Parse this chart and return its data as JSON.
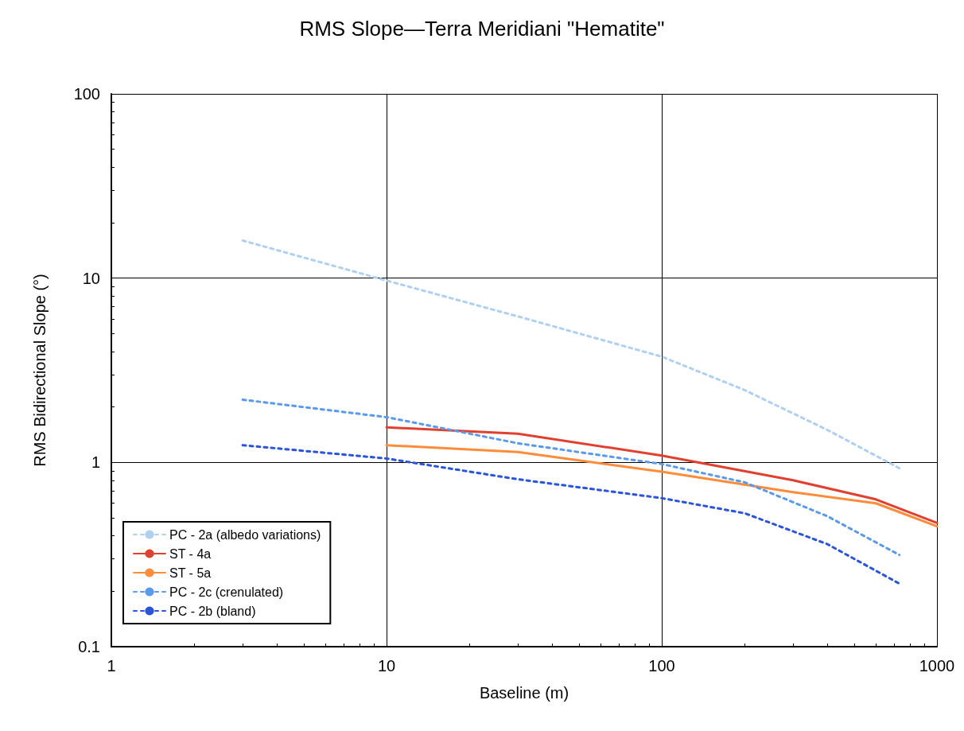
{
  "chart_data": {
    "type": "line",
    "title": "RMS Slope—Terra Meridiani \"Hematite\"",
    "xlabel": "Baseline (m)",
    "ylabel": "RMS Bidirectional Slope (°)",
    "log": "xy",
    "xlim": [
      1,
      1000
    ],
    "xticks": [
      1,
      10,
      100,
      1000
    ],
    "ylim": [
      0.1,
      100
    ],
    "yticks": [
      0.1,
      1,
      10,
      100
    ],
    "grid": true,
    "legend": "bottom left",
    "marker": "none",
    "series": [
      {
        "name": "PC - 2a (albedo variations)",
        "color": "#b0d0f0",
        "line_style": "dashed",
        "x": [
          3,
          10,
          30,
          100,
          200,
          400,
          730
        ],
        "values": [
          16,
          9.7,
          6.2,
          3.75,
          2.47,
          1.5,
          0.93
        ]
      },
      {
        "name": "ST - 4a",
        "color": "#e04030",
        "line_style": "solid",
        "x": [
          10,
          30,
          100,
          300,
          600,
          1000
        ],
        "values": [
          1.55,
          1.43,
          1.09,
          0.8,
          0.63,
          0.47
        ]
      },
      {
        "name": "ST - 5a",
        "color": "#ff8c3a",
        "line_style": "solid",
        "x": [
          10,
          30,
          100,
          300,
          600,
          1000
        ],
        "values": [
          1.24,
          1.14,
          0.89,
          0.69,
          0.6,
          0.45
        ]
      },
      {
        "name": "PC - 2c (crenulated)",
        "color": "#5a9ae8",
        "line_style": "dashed",
        "x": [
          3,
          10,
          30,
          100,
          200,
          400,
          730
        ],
        "values": [
          2.19,
          1.76,
          1.27,
          0.98,
          0.78,
          0.51,
          0.315
        ]
      },
      {
        "name": "PC - 2b (bland)",
        "color": "#2b55d8",
        "line_style": "dashed",
        "x": [
          3,
          10,
          30,
          100,
          200,
          400,
          730
        ],
        "values": [
          1.24,
          1.05,
          0.81,
          0.64,
          0.53,
          0.36,
          0.22
        ]
      }
    ]
  }
}
